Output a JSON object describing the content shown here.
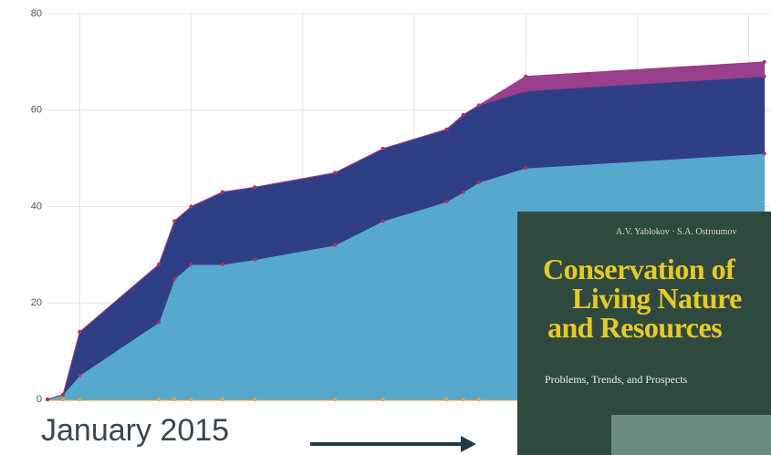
{
  "chart_data": {
    "type": "stacked_area",
    "x": [
      -0.29,
      -0.15,
      0,
      0.71,
      0.85,
      1.0,
      1.28,
      1.57,
      2.29,
      2.72,
      3.29,
      3.44,
      3.58,
      4.0,
      6.14
    ],
    "series": [
      {
        "color": "#f0a030",
        "values": [
          0,
          0,
          0,
          0,
          0,
          0,
          0,
          0,
          0,
          0,
          0,
          0,
          0,
          0,
          0
        ]
      },
      {
        "color": "#56a8cc",
        "values": [
          0,
          1,
          5,
          16,
          25,
          28,
          28,
          29,
          32,
          37,
          41,
          43,
          45,
          48,
          51
        ]
      },
      {
        "color": "#2f3f85",
        "values": [
          0,
          0,
          9,
          12,
          12,
          12,
          15,
          15,
          15,
          15,
          15,
          16,
          16,
          16,
          16
        ]
      },
      {
        "color": "#9a3f8c",
        "values": [
          0,
          0,
          0,
          0,
          0,
          0,
          0,
          0,
          0,
          0,
          0,
          0,
          0,
          3,
          3
        ]
      }
    ],
    "xlim": [
      -0.29,
      6.2
    ],
    "xticks": [
      0,
      1,
      2,
      3,
      4,
      5,
      6
    ],
    "ylim": [
      0,
      80
    ],
    "yticks": [
      0,
      20,
      40,
      60,
      80
    ],
    "grid": true,
    "annotation": "January 2015"
  },
  "book": {
    "authors": "A.V. Yablokov · S.A. Ostroumov",
    "title": [
      "Conservation of",
      "Living Nature",
      "and Resources"
    ],
    "subtitle": "Problems, Trends, and Prospects"
  }
}
